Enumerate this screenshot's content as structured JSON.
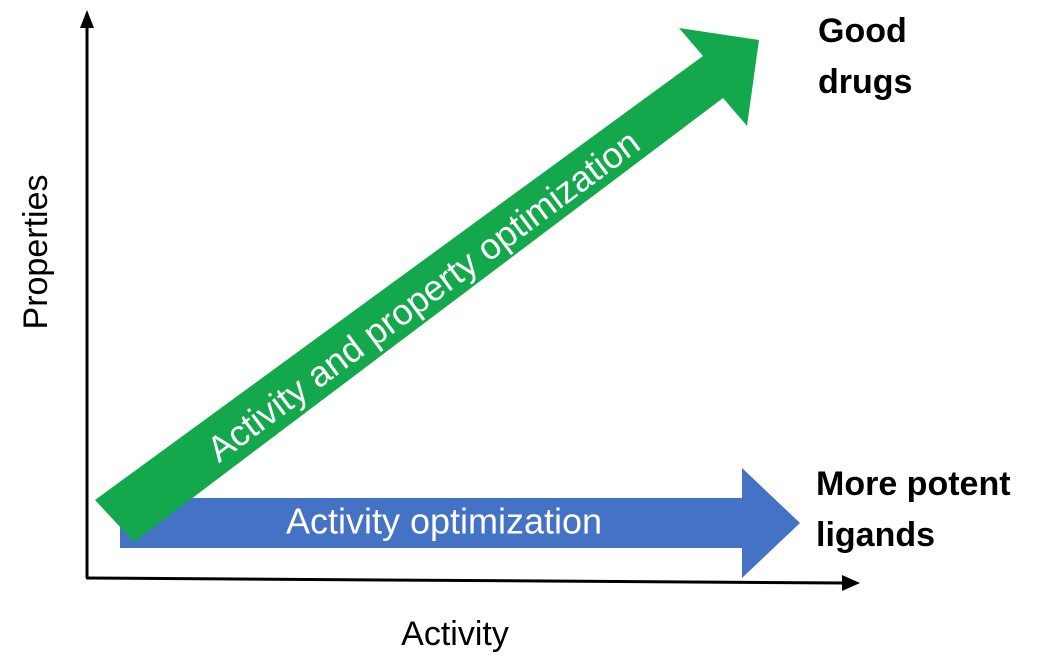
{
  "diagram": {
    "axes": {
      "x_label": "Activity",
      "y_label": "Properties"
    },
    "arrows": {
      "green": {
        "label": "Activity and property optimization",
        "color": "#13a84c"
      },
      "blue": {
        "label": "Activity optimization",
        "color": "#4472c4"
      }
    },
    "end_labels": {
      "good_drugs": [
        "Good",
        "drugs"
      ],
      "more_potent": [
        "More potent",
        "ligands"
      ]
    }
  }
}
